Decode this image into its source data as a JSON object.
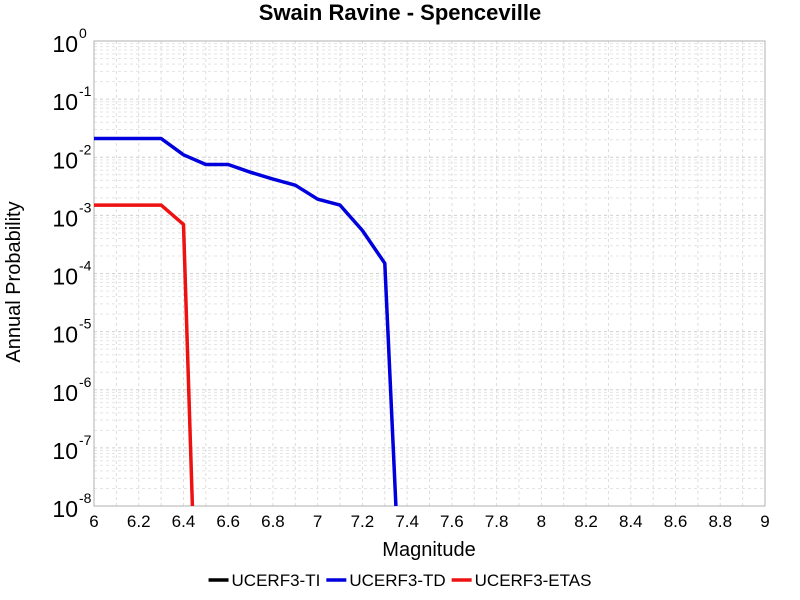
{
  "chart_data": {
    "type": "line",
    "title": "Swain Ravine - Spenceville",
    "xlabel": "Magnitude",
    "ylabel": "Annual Probability",
    "xlim": [
      6,
      9
    ],
    "ylim": [
      1e-08,
      1
    ],
    "yscale": "log",
    "grid": true,
    "legend_position": "bottom",
    "x_ticks": [
      "6",
      "6.2",
      "6.4",
      "6.6",
      "6.8",
      "7",
      "7.2",
      "7.4",
      "7.6",
      "7.8",
      "8",
      "8.2",
      "8.4",
      "8.6",
      "8.8",
      "9"
    ],
    "y_tick_exponents": [
      "0",
      "-1",
      "-2",
      "-3",
      "-4",
      "-5",
      "-6",
      "-7",
      "-8"
    ],
    "y_tick_base": "10",
    "series": [
      {
        "name": "UCERF3-TI",
        "color": "#000000",
        "x": [],
        "y": []
      },
      {
        "name": "UCERF3-TD",
        "color": "#0000dd",
        "x": [
          6.0,
          6.3,
          6.4,
          6.5,
          6.6,
          6.7,
          6.8,
          6.9,
          7.0,
          7.1,
          7.2,
          7.3,
          7.35
        ],
        "y": [
          0.021,
          0.021,
          0.011,
          0.0075,
          0.0075,
          0.0055,
          0.0042,
          0.0033,
          0.0019,
          0.0015,
          0.00055,
          0.00015,
          1e-08
        ]
      },
      {
        "name": "UCERF3-ETAS",
        "color": "#ee1111",
        "x": [
          6.0,
          6.3,
          6.4,
          6.44
        ],
        "y": [
          0.0015,
          0.0015,
          0.0007,
          1e-08
        ]
      }
    ]
  }
}
